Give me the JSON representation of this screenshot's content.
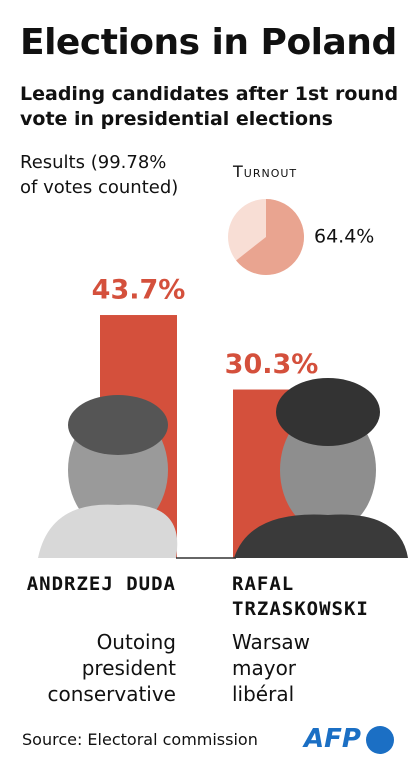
{
  "title": "Elections in Poland",
  "subtitle": "Leading candidates after 1st round vote in presidential elections",
  "source": "Source: Electoral commission",
  "logo": "AFP",
  "chart_data": [
    {
      "type": "bar",
      "title": "Results (99.78% of votes counted)",
      "categories": [
        "Andrzej Duda",
        "Rafal Trzaskowski"
      ],
      "descriptions": [
        "Outoing president conservative",
        "Warsaw mayor libéral"
      ],
      "values": [
        43.7,
        30.3
      ],
      "value_labels": [
        "43.7%",
        "30.3%"
      ],
      "color": "#d4503c"
    },
    {
      "type": "pie",
      "title": "Turnout",
      "values": [
        64.4
      ],
      "value_labels": [
        "64.4%"
      ],
      "color": "#e9a490"
    }
  ]
}
